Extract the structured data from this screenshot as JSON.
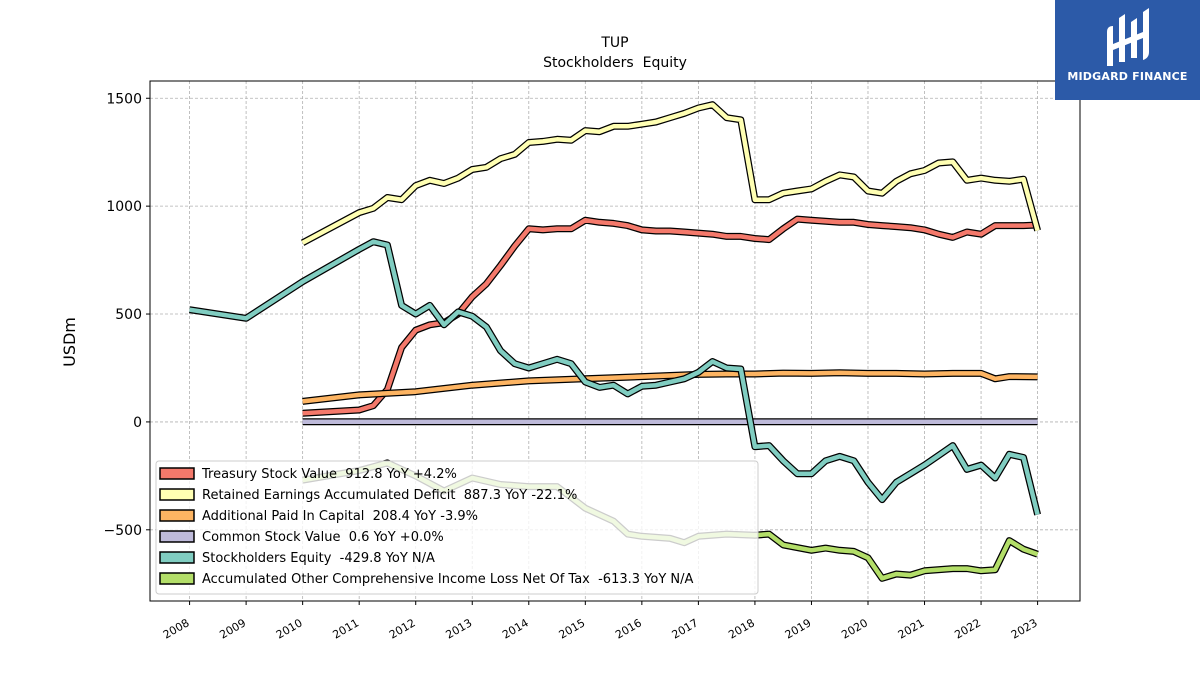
{
  "chart_data": {
    "type": "line",
    "title": "TUP",
    "subtitle": "Stockholders  Equity",
    "ylabel": "USDm",
    "xlim": [
      2007.3,
      2023.75
    ],
    "ylim": [
      -830,
      1580
    ],
    "yticks": [
      -500,
      0,
      500,
      1000,
      1500
    ],
    "yticklabels": [
      "−500",
      "0",
      "500",
      "1000",
      "1500"
    ],
    "xticks": [
      2008,
      2009,
      2010,
      2011,
      2012,
      2013,
      2014,
      2015,
      2016,
      2017,
      2018,
      2019,
      2020,
      2021,
      2022,
      2023
    ],
    "xticklabels": [
      "2008",
      "2009",
      "2010",
      "2011",
      "2012",
      "2013",
      "2014",
      "2015",
      "2016",
      "2017",
      "2018",
      "2019",
      "2020",
      "2021",
      "2022",
      "2023"
    ],
    "grid": true,
    "legend_position": "lower-left",
    "series": [
      {
        "name": "Treasury Stock Value",
        "legend": "Treasury Stock Value  912.8 YoY +4.2%",
        "color": "#f4796b",
        "x": [
          2010,
          2011,
          2011.25,
          2011.5,
          2011.75,
          2012,
          2012.25,
          2012.5,
          2012.75,
          2013,
          2013.25,
          2013.5,
          2013.75,
          2014,
          2014.25,
          2014.5,
          2014.75,
          2015,
          2015.25,
          2015.5,
          2015.75,
          2016,
          2016.25,
          2016.5,
          2016.75,
          2017,
          2017.25,
          2017.5,
          2017.75,
          2018,
          2018.25,
          2018.5,
          2018.75,
          2019,
          2019.25,
          2019.5,
          2019.75,
          2020,
          2020.25,
          2020.5,
          2020.75,
          2021,
          2021.25,
          2021.5,
          2021.75,
          2022,
          2022.25,
          2022.5,
          2022.75,
          2023
        ],
        "values": [
          40,
          55,
          75,
          150,
          345,
          425,
          450,
          460,
          500,
          580,
          640,
          725,
          815,
          895,
          890,
          895,
          895,
          935,
          925,
          920,
          910,
          890,
          885,
          885,
          880,
          875,
          870,
          860,
          860,
          850,
          845,
          895,
          940,
          935,
          930,
          925,
          925,
          915,
          910,
          905,
          900,
          890,
          870,
          855,
          880,
          870,
          910,
          910,
          910,
          912.8
        ]
      },
      {
        "name": "Retained Earnings Accumulated Deficit",
        "legend": "Retained Earnings Accumulated Deficit  887.3 YoY -22.1%",
        "color": "#ffffb3",
        "x": [
          2010,
          2011,
          2011.25,
          2011.5,
          2011.75,
          2012,
          2012.25,
          2012.5,
          2012.75,
          2013,
          2013.25,
          2013.5,
          2013.75,
          2014,
          2014.25,
          2014.5,
          2014.75,
          2015,
          2015.25,
          2015.5,
          2015.75,
          2016,
          2016.25,
          2016.5,
          2016.75,
          2017,
          2017.25,
          2017.5,
          2017.75,
          2018,
          2018.25,
          2018.5,
          2018.75,
          2019,
          2019.25,
          2019.5,
          2019.75,
          2020,
          2020.25,
          2020.5,
          2020.75,
          2021,
          2021.25,
          2021.5,
          2021.75,
          2022,
          2022.25,
          2022.5,
          2022.75,
          2023
        ],
        "values": [
          830,
          970,
          990,
          1040,
          1030,
          1095,
          1120,
          1105,
          1130,
          1170,
          1180,
          1220,
          1240,
          1295,
          1300,
          1310,
          1305,
          1350,
          1345,
          1370,
          1370,
          1380,
          1390,
          1410,
          1430,
          1455,
          1470,
          1410,
          1400,
          1030,
          1030,
          1060,
          1070,
          1080,
          1115,
          1145,
          1135,
          1070,
          1060,
          1115,
          1150,
          1165,
          1200,
          1205,
          1120,
          1130,
          1120,
          1115,
          1125,
          887.3
        ]
      },
      {
        "name": "Additional Paid In Capital",
        "legend": "Additional Paid In Capital  208.4 YoY -3.9%",
        "color": "#fdb462",
        "x": [
          2010,
          2011,
          2012,
          2013,
          2014,
          2015,
          2016,
          2017,
          2017.5,
          2018,
          2018.5,
          2019,
          2019.5,
          2020,
          2020.5,
          2021,
          2021.5,
          2022,
          2022.25,
          2022.5,
          2023
        ],
        "values": [
          95,
          125,
          140,
          170,
          190,
          200,
          210,
          220,
          222,
          222,
          226,
          225,
          228,
          225,
          225,
          222,
          225,
          225,
          200,
          210,
          208.4
        ]
      },
      {
        "name": "Common Stock Value",
        "legend": "Common Stock Value  0.6 YoY +0.0%",
        "color": "#bebada",
        "x": [
          2010,
          2023
        ],
        "values": [
          0.6,
          0.6
        ]
      },
      {
        "name": "Stockholders Equity",
        "legend": "Stockholders Equity  -429.8 YoY N/A",
        "color": "#80cdc1",
        "x": [
          2008,
          2009,
          2010,
          2011,
          2011.25,
          2011.5,
          2011.75,
          2012,
          2012.25,
          2012.5,
          2012.75,
          2013,
          2013.25,
          2013.5,
          2013.75,
          2014,
          2014.25,
          2014.5,
          2014.75,
          2015,
          2015.25,
          2015.5,
          2015.75,
          2016,
          2016.25,
          2016.5,
          2016.75,
          2017,
          2017.25,
          2017.5,
          2017.75,
          2018,
          2018.25,
          2018.5,
          2018.75,
          2019,
          2019.25,
          2019.5,
          2019.75,
          2020,
          2020.25,
          2020.5,
          2020.75,
          2021,
          2021.25,
          2021.5,
          2021.75,
          2022,
          2022.25,
          2022.5,
          2022.75,
          2023
        ],
        "values": [
          520,
          480,
          650,
          800,
          835,
          820,
          540,
          500,
          540,
          450,
          510,
          490,
          440,
          330,
          270,
          250,
          270,
          290,
          270,
          185,
          160,
          170,
          130,
          165,
          170,
          185,
          200,
          230,
          280,
          250,
          245,
          -115,
          -110,
          -180,
          -240,
          -240,
          -180,
          -160,
          -180,
          -280,
          -360,
          -280,
          -240,
          -200,
          -155,
          -110,
          -220,
          -200,
          -260,
          -150,
          -165,
          -429.8
        ]
      },
      {
        "name": "Accumulated Other Comprehensive Income Loss Net Of Tax",
        "legend": "Accumulated Other Comprehensive Income Loss Net Of Tax  -613.3 YoY N/A",
        "color": "#b3de69",
        "x": [
          2010,
          2011,
          2011.5,
          2012,
          2012.5,
          2013,
          2013.5,
          2014,
          2014.5,
          2015,
          2015.5,
          2015.75,
          2016,
          2016.5,
          2016.75,
          2017,
          2017.5,
          2018,
          2018.25,
          2018.5,
          2019,
          2019.25,
          2019.5,
          2019.75,
          2020,
          2020.25,
          2020.5,
          2020.75,
          2021,
          2021.5,
          2021.75,
          2022,
          2022.25,
          2022.5,
          2022.75,
          2023
        ],
        "values": [
          -270,
          -225,
          -190,
          -250,
          -320,
          -260,
          -290,
          -300,
          -300,
          -400,
          -460,
          -520,
          -530,
          -540,
          -560,
          -530,
          -520,
          -525,
          -520,
          -570,
          -595,
          -585,
          -595,
          -600,
          -630,
          -725,
          -705,
          -710,
          -690,
          -680,
          -680,
          -690,
          -685,
          -550,
          -590,
          -613.3
        ]
      }
    ]
  },
  "brand": {
    "name": "MIDGARD FINANCE",
    "icon": "midgard-logo-icon",
    "color": "#2c5aa8"
  }
}
